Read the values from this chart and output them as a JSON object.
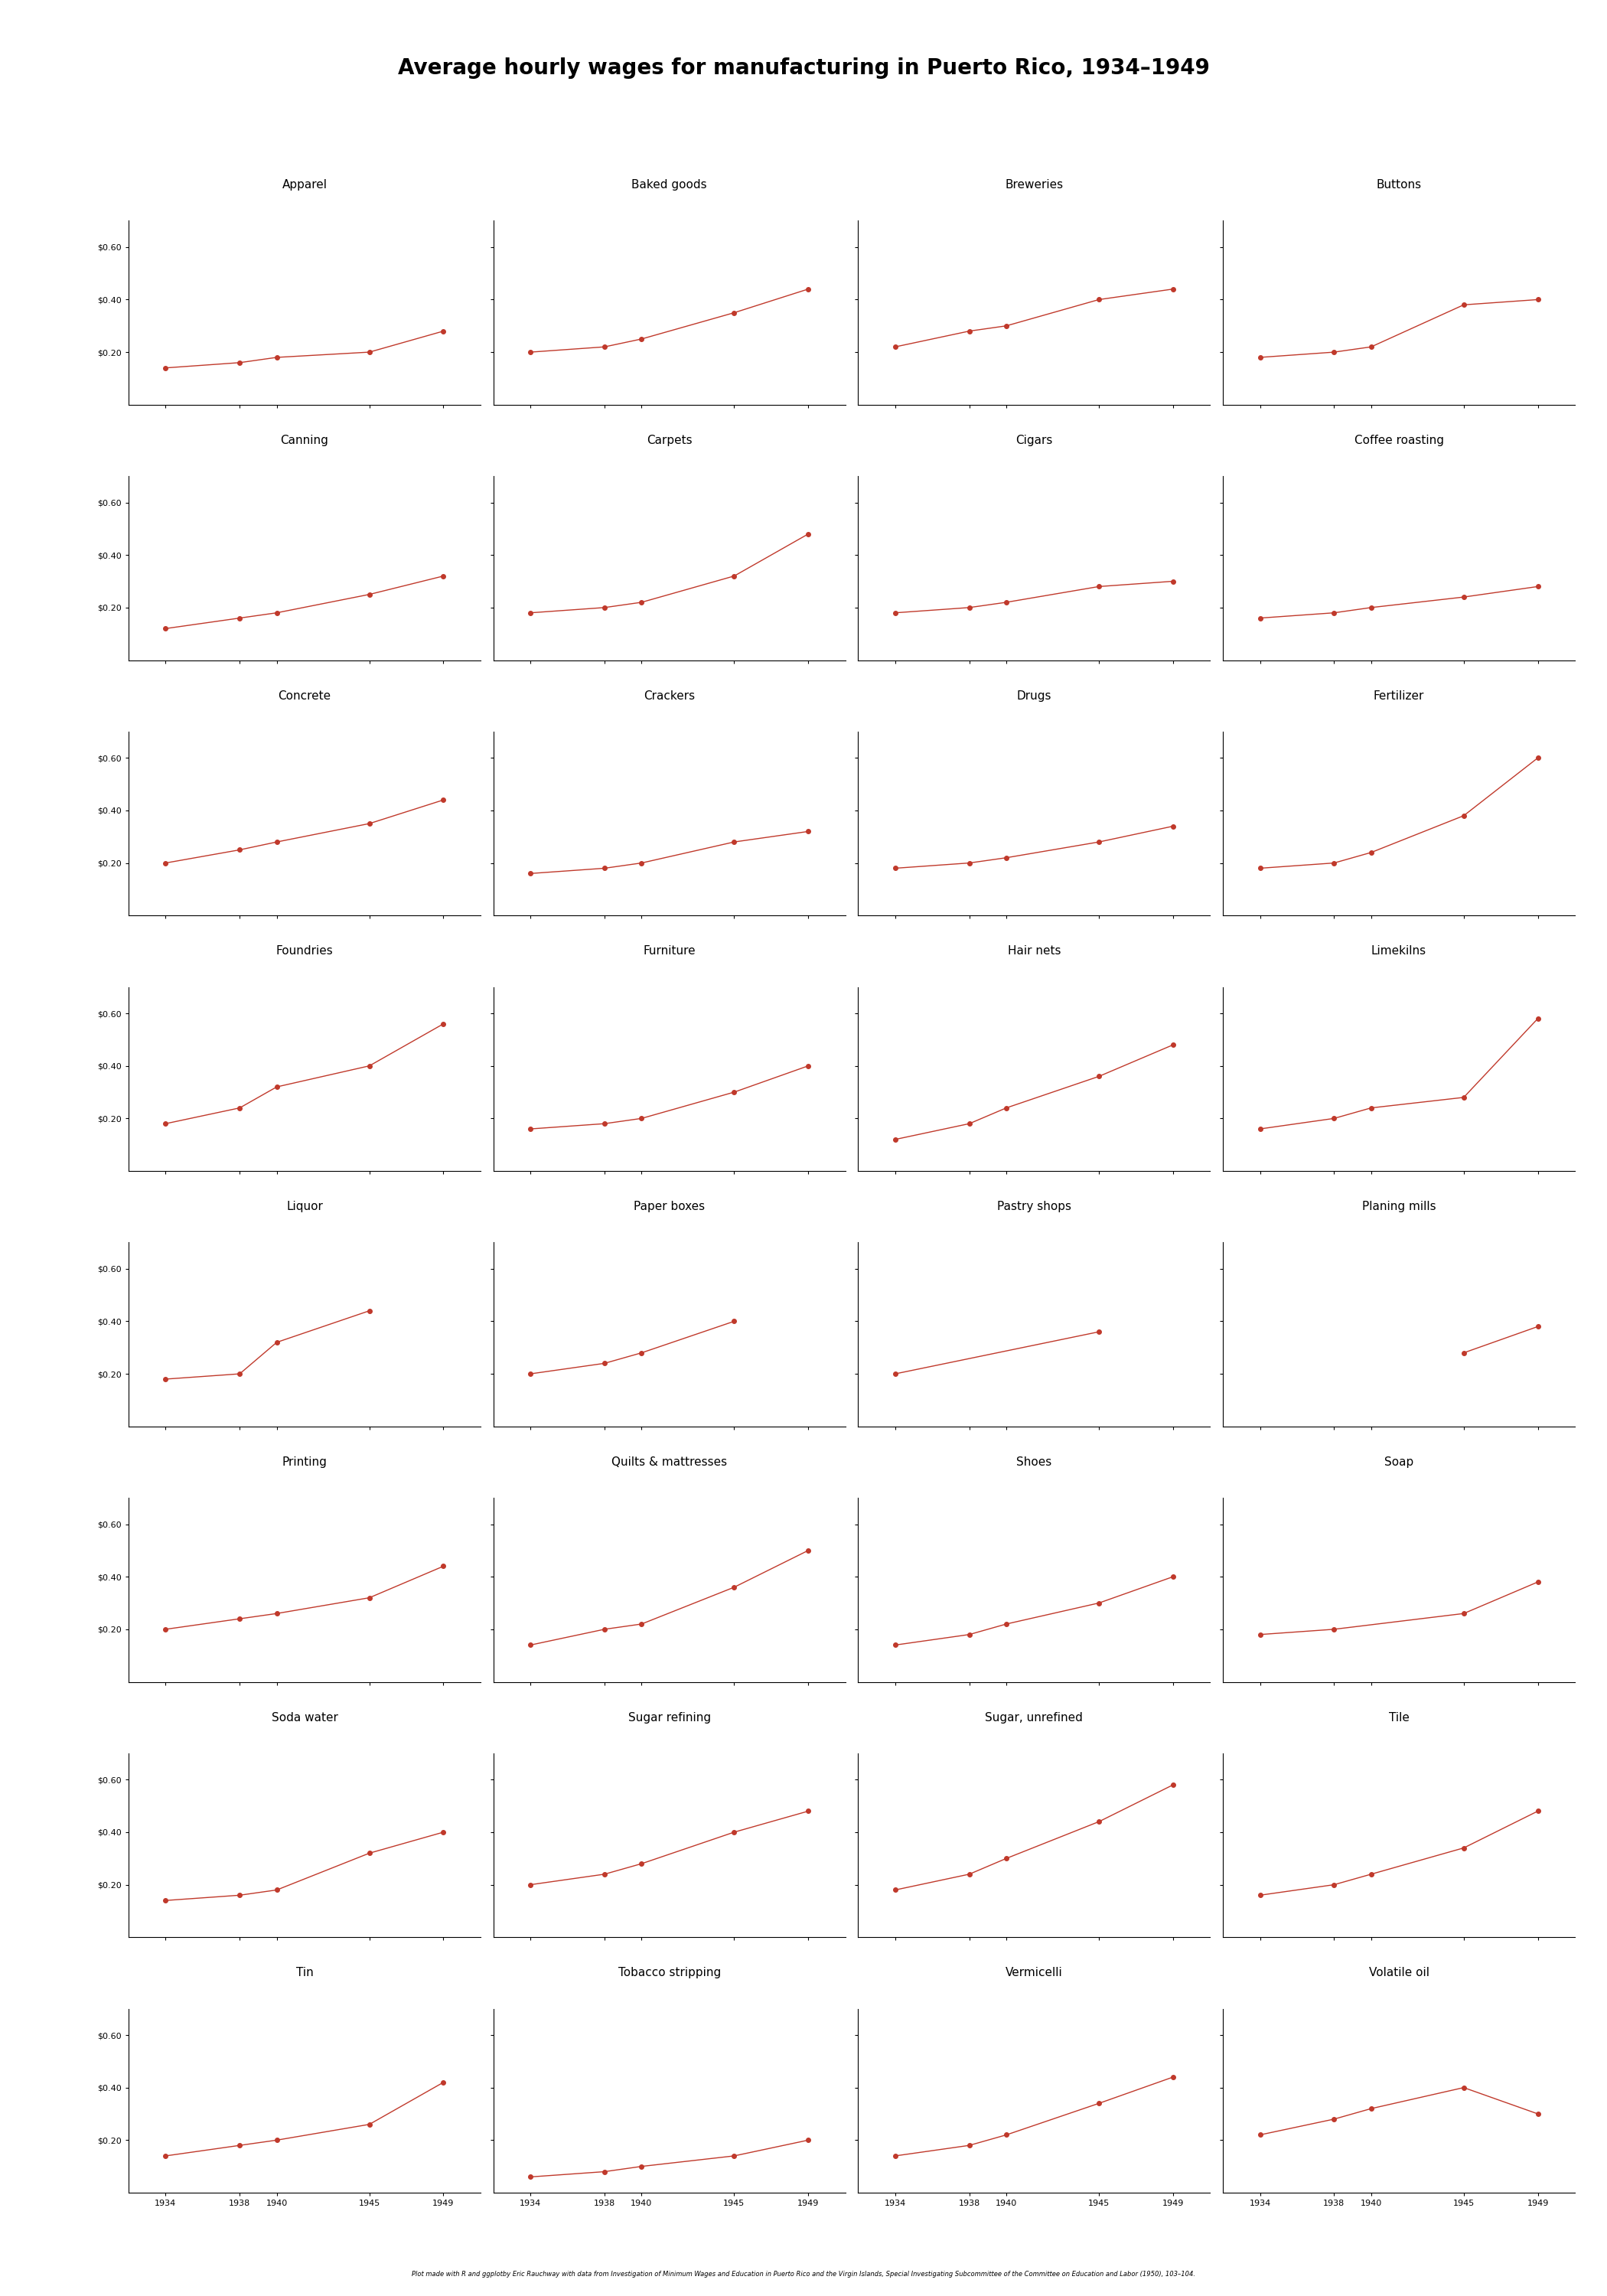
{
  "title": "Average hourly wages for manufacturing in Puerto Rico, 1934–1949",
  "subtitle": "Plot made with R and ggplotby Eric Rauchway with data from Investigation of Minimum Wages and Education in Puerto Rico and the Virgin Islands, Special Investigating Subcommittee of the Committee on Education and Labor (1950), 103–104.",
  "years": [
    1934,
    1938,
    1940,
    1945,
    1949
  ],
  "industries": [
    "Apparel",
    "Baked goods",
    "Breweries",
    "Buttons",
    "Canning",
    "Carpets",
    "Cigars",
    "Coffee roasting",
    "Concrete",
    "Crackers",
    "Drugs",
    "Fertilizer",
    "Foundries",
    "Furniture",
    "Hair nets",
    "Limekilns",
    "Liquor",
    "Paper boxes",
    "Pastry shops",
    "Planing mills",
    "Printing",
    "Quilts & mattresses",
    "Shoes",
    "Soap",
    "Soda water",
    "Sugar refining",
    "Sugar, unrefined",
    "Tile",
    "Tin",
    "Tobacco stripping",
    "Vermicelli",
    "Volatile oil"
  ],
  "data": {
    "Apparel": [
      0.14,
      0.16,
      0.18,
      0.2,
      0.28
    ],
    "Baked goods": [
      0.2,
      0.22,
      0.25,
      0.35,
      0.44
    ],
    "Breweries": [
      0.22,
      0.28,
      0.3,
      0.4,
      0.44
    ],
    "Buttons": [
      0.18,
      0.2,
      0.22,
      0.38,
      0.4
    ],
    "Canning": [
      0.12,
      0.16,
      0.18,
      0.25,
      0.32
    ],
    "Carpets": [
      0.18,
      0.2,
      0.22,
      0.32,
      0.48
    ],
    "Cigars": [
      0.18,
      0.2,
      0.22,
      0.28,
      0.3
    ],
    "Coffee roasting": [
      0.16,
      0.18,
      0.2,
      0.24,
      0.28
    ],
    "Concrete": [
      0.2,
      0.25,
      0.28,
      0.35,
      0.44
    ],
    "Crackers": [
      0.16,
      0.18,
      0.2,
      0.28,
      0.32
    ],
    "Drugs": [
      0.18,
      0.2,
      0.22,
      0.28,
      0.34
    ],
    "Fertilizer": [
      0.18,
      0.2,
      0.24,
      0.38,
      0.6
    ],
    "Foundries": [
      0.18,
      0.24,
      0.32,
      0.4,
      0.56
    ],
    "Furniture": [
      0.16,
      0.18,
      0.2,
      0.3,
      0.4
    ],
    "Hair nets": [
      0.12,
      0.18,
      0.24,
      0.36,
      0.48
    ],
    "Limekilns": [
      0.16,
      0.2,
      0.24,
      0.28,
      0.58
    ],
    "Liquor": [
      0.18,
      0.2,
      0.32,
      0.44,
      null
    ],
    "Paper boxes": [
      0.2,
      0.24,
      0.28,
      0.4,
      null
    ],
    "Pastry shops": [
      0.2,
      null,
      null,
      0.36,
      null
    ],
    "Planing mills": [
      null,
      null,
      null,
      0.28,
      0.38
    ],
    "Printing": [
      0.2,
      0.24,
      0.26,
      0.32,
      0.44
    ],
    "Quilts & mattresses": [
      0.14,
      0.2,
      0.22,
      0.36,
      0.5
    ],
    "Shoes": [
      0.14,
      0.18,
      0.22,
      0.3,
      0.4
    ],
    "Soap": [
      0.18,
      0.2,
      null,
      0.26,
      0.38
    ],
    "Soda water": [
      0.14,
      0.16,
      0.18,
      0.32,
      0.4
    ],
    "Sugar refining": [
      0.2,
      0.24,
      0.28,
      0.4,
      0.48
    ],
    "Sugar, unrefined": [
      0.18,
      0.24,
      0.3,
      0.44,
      0.58
    ],
    "Tile": [
      0.16,
      0.2,
      0.24,
      0.34,
      0.48
    ],
    "Tin": [
      0.14,
      0.18,
      0.2,
      0.26,
      0.42
    ],
    "Tobacco stripping": [
      0.06,
      0.08,
      0.1,
      0.14,
      0.2
    ],
    "Vermicelli": [
      0.14,
      0.18,
      0.22,
      0.34,
      0.44
    ],
    "Volatile oil": [
      0.22,
      0.28,
      0.32,
      0.4,
      0.3
    ]
  },
  "ylim": [
    0,
    0.7
  ],
  "yticks": [
    0.2,
    0.4,
    0.6
  ],
  "ytick_labels": [
    "$0.20",
    "$0.40",
    "$0.60"
  ],
  "xticks": [
    1934,
    1938,
    1940,
    1945,
    1949
  ],
  "xtick_labels": [
    "1934",
    "1938",
    "1940",
    "1945",
    "1949"
  ],
  "line_color": "#c0392b",
  "point_color": "#c0392b",
  "header_bg": "#d0d0d0",
  "bg_color": "#ffffff",
  "ncols": 4,
  "nrows": 8
}
